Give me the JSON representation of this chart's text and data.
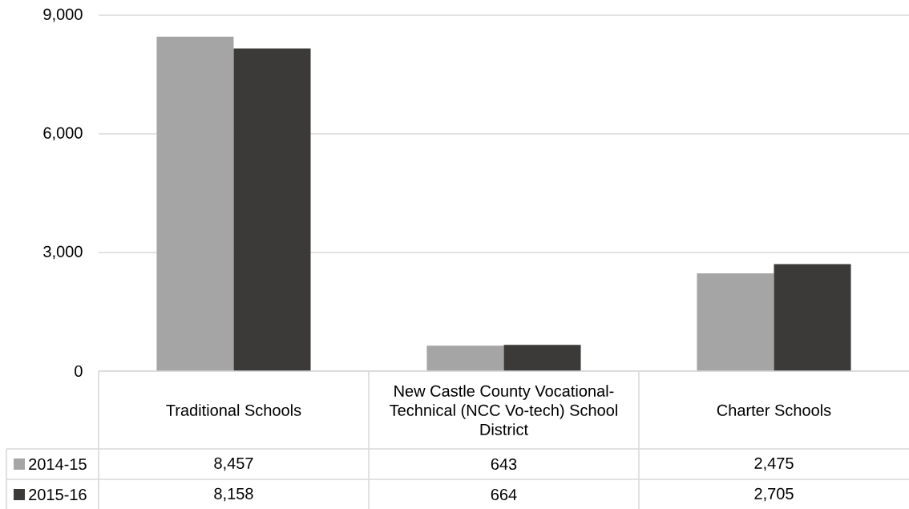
{
  "chart_data": {
    "type": "bar",
    "categories": [
      "Traditional Schools",
      "New Castle County Vocational-Technical (NCC Vo-tech) School District",
      "Charter Schools"
    ],
    "series": [
      {
        "name": "2014-15",
        "color": "#a5a5a5",
        "values": [
          8457,
          643,
          2475
        ],
        "value_labels": [
          "8,457",
          "643",
          "2,475"
        ]
      },
      {
        "name": "2015-16",
        "color": "#3b3a39",
        "values": [
          8158,
          664,
          2705
        ],
        "value_labels": [
          "8,158",
          "664",
          "2,705"
        ]
      }
    ],
    "ylim": [
      0,
      9000
    ],
    "yticks": [
      0,
      {
        "value": 3000,
        "label": "3,000"
      },
      {
        "value": 6000,
        "label": "6,000"
      },
      {
        "value": 9000,
        "label": "9,000"
      }
    ],
    "grid": "y",
    "legend": "bottom"
  }
}
